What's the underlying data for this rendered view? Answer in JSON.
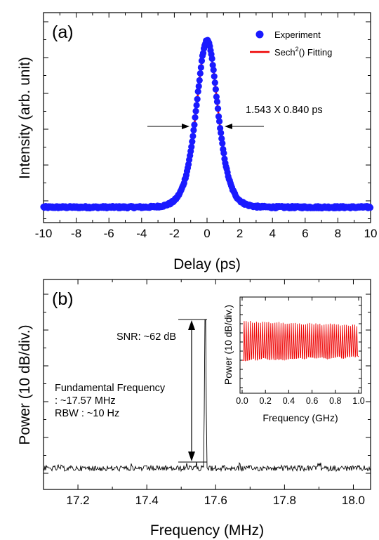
{
  "chart_data": [
    {
      "type": "scatter",
      "panel_label": "(a)",
      "xlabel": "Delay (ps)",
      "ylabel": "Intensity (arb. unit)",
      "xlim": [
        -10,
        10
      ],
      "x_ticks": [
        -10,
        -8,
        -6,
        -4,
        -2,
        0,
        2,
        4,
        6,
        8,
        10
      ],
      "x_tick_labels": [
        "-10",
        "-8",
        "-6",
        "-4",
        "-2",
        "0",
        "2",
        "4",
        "6",
        "8",
        "10"
      ],
      "y_ticks_labeled": false,
      "legend": {
        "placement": "top-right",
        "entries": [
          {
            "label": "Experiment",
            "color": "#1a1aff",
            "marker": "circle"
          },
          {
            "label_main": "Sech",
            "label_sup": "2",
            "label_rest": "() Fitting",
            "color": "#ee0000",
            "marker": "line"
          }
        ]
      },
      "annotation": "1.543 X 0.840 ps",
      "series": [
        {
          "name": "Experiment",
          "x": [
            -10,
            -9.5,
            -9,
            -8.5,
            -8,
            -7.5,
            -7,
            -6.5,
            -6,
            -5.5,
            -5,
            -4.5,
            -4,
            -3.5,
            -3,
            -2.8,
            -2.6,
            -2.4,
            -2.2,
            -2,
            -1.8,
            -1.6,
            -1.4,
            -1.2,
            -1,
            -0.8,
            -0.6,
            -0.4,
            -0.2,
            0,
            0.2,
            0.4,
            0.6,
            0.8,
            1,
            1.2,
            1.4,
            1.6,
            1.8,
            2,
            2.2,
            2.4,
            2.6,
            2.8,
            3,
            3.5,
            4,
            4.5,
            5,
            5.5,
            6,
            6.5,
            7,
            7.5,
            8,
            8.5,
            9,
            9.5,
            10
          ],
          "y": [
            0.004,
            0.005,
            0.004,
            0.006,
            0.004,
            0.005,
            0.005,
            0.004,
            0.006,
            0.006,
            0.007,
            0.008,
            0.012,
            0.017,
            0.028,
            0.034,
            0.043,
            0.055,
            0.071,
            0.092,
            0.12,
            0.158,
            0.21,
            0.28,
            0.37,
            0.49,
            0.64,
            0.8,
            0.94,
            1.0,
            0.94,
            0.8,
            0.64,
            0.49,
            0.37,
            0.28,
            0.21,
            0.158,
            0.12,
            0.092,
            0.071,
            0.055,
            0.043,
            0.034,
            0.028,
            0.017,
            0.012,
            0.008,
            0.007,
            0.006,
            0.006,
            0.005,
            0.005,
            0.004,
            0.006,
            0.005,
            0.004,
            0.005,
            0.004
          ]
        },
        {
          "name": "Sech2() Fitting",
          "model": "sech2",
          "center": 0,
          "fwhm_ps": 1.543,
          "amplitude": 1.0,
          "baseline": 0.004
        }
      ]
    },
    {
      "type": "line",
      "panel_label": "(b)",
      "xlabel": "Frequency (MHz)",
      "ylabel": "Power (10 dB/div.)",
      "xlim": [
        17.1,
        18.05
      ],
      "x_ticks": [
        17.2,
        17.4,
        17.6,
        17.8,
        18.0
      ],
      "x_tick_labels": [
        "17.2",
        "17.4",
        "17.6",
        "17.8",
        "18.0"
      ],
      "y_ticks_labeled": false,
      "peak": {
        "x": 17.57,
        "snr_db": 62
      },
      "annotations": {
        "snr": "SNR: ~62 dB",
        "fundamental_line1": "Fundamental Frequency",
        "fundamental_line2": ": ~17.57 MHz",
        "rbw": "RBW : ~10 Hz"
      },
      "inset": {
        "type": "line",
        "xlabel": "Frequency (GHz)",
        "ylabel": "Power (10 dB/div.)",
        "xlim": [
          0,
          1.0
        ],
        "x_ticks": [
          0.0,
          0.2,
          0.4,
          0.6,
          0.8,
          1.0
        ],
        "x_tick_labels": [
          "0.0",
          "0.2",
          "0.4",
          "0.6",
          "0.8",
          "1.0"
        ],
        "harmonic_spacing_ghz": 0.01757,
        "color": "#ee0000"
      }
    }
  ]
}
